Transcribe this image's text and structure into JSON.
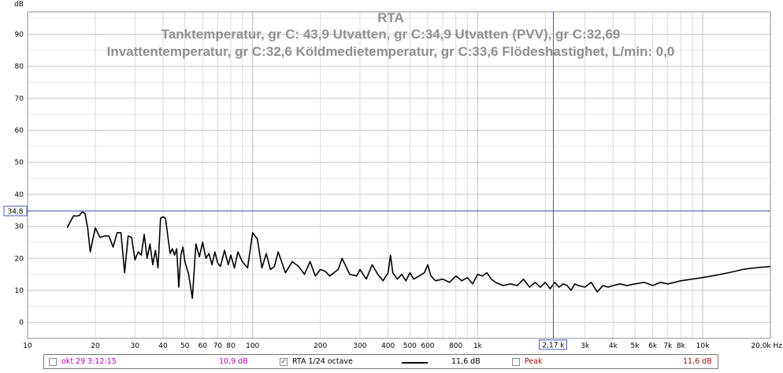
{
  "chart_data": {
    "type": "line",
    "title": "RTA",
    "subtitle_lines": [
      "Tanktemperatur, gr C: 43,9 Utvatten, gr C:34,9 Utvatten (PVV),  gr C:32,69",
      "Invattentemperatur,  gr C:32,6 Köldmedietemperatur, gr C:33,6 Flödeshastighet, L/min: 0,0"
    ],
    "ylabel": "dB",
    "xunit": "Hz",
    "x_scale": "log",
    "xlim": [
      10,
      20000
    ],
    "ylim": [
      -5,
      97
    ],
    "y_ticks": [
      0,
      10,
      20,
      30,
      40,
      50,
      60,
      70,
      80,
      90
    ],
    "x_ticks": [
      {
        "value": 10,
        "label": "10"
      },
      {
        "value": 20,
        "label": "20"
      },
      {
        "value": 30,
        "label": "30"
      },
      {
        "value": 40,
        "label": "40"
      },
      {
        "value": 50,
        "label": "50"
      },
      {
        "value": 60,
        "label": "60"
      },
      {
        "value": 70,
        "label": "70"
      },
      {
        "value": 80,
        "label": "80"
      },
      {
        "value": 100,
        "label": "100"
      },
      {
        "value": 200,
        "label": "200"
      },
      {
        "value": 300,
        "label": "300"
      },
      {
        "value": 400,
        "label": "400"
      },
      {
        "value": 500,
        "label": "500"
      },
      {
        "value": 600,
        "label": "600"
      },
      {
        "value": 800,
        "label": "800"
      },
      {
        "value": 1000,
        "label": "1k"
      },
      {
        "value": 3000,
        "label": "3k"
      },
      {
        "value": 4000,
        "label": "4k"
      },
      {
        "value": 5000,
        "label": "5k"
      },
      {
        "value": 6000,
        "label": "6k"
      },
      {
        "value": 7000,
        "label": "7k"
      },
      {
        "value": 8000,
        "label": "8k"
      },
      {
        "value": 10000,
        "label": "10k"
      },
      {
        "value": 20000,
        "label": "20,0k Hz"
      }
    ],
    "grid": true,
    "cursor": {
      "x": 2170,
      "x_label": "2,17 k",
      "y": 34.8,
      "y_label": "34,8"
    },
    "series": [
      {
        "name": "RTA 1/24 octave",
        "color": "#000000",
        "x": [
          15.0,
          15.5,
          16.0,
          16.5,
          17.0,
          17.5,
          18.0,
          18.5,
          19.0,
          19.5,
          20.0,
          21.0,
          22.0,
          23.0,
          24.0,
          25.0,
          26.0,
          27.0,
          28.0,
          29.0,
          30.0,
          31.0,
          32.0,
          33.0,
          34.0,
          35.0,
          36.0,
          37.0,
          38.0,
          39.0,
          40.0,
          41.0,
          42.0,
          43.0,
          44.0,
          45.0,
          46.0,
          47.0,
          48.0,
          49.0,
          50.0,
          52.0,
          54.0,
          56.0,
          58.0,
          60.0,
          62.0,
          64.0,
          66.0,
          68.0,
          70.0,
          72.0,
          75.0,
          78.0,
          80.0,
          83.0,
          86.0,
          90.0,
          95.0,
          100.0,
          105.0,
          110.0,
          115.0,
          120.0,
          125.0,
          130.0,
          140.0,
          150.0,
          160.0,
          170.0,
          180.0,
          190.0,
          200.0,
          210.0,
          220.0,
          240.0,
          250.0,
          260.0,
          270.0,
          290.0,
          300.0,
          320.0,
          340.0,
          360.0,
          380.0,
          400.0,
          410.0,
          420.0,
          440.0,
          460.0,
          480.0,
          500.0,
          520.0,
          550.0,
          580.0,
          600.0,
          620.0,
          650.0,
          700.0,
          750.0,
          800.0,
          850.0,
          900.0,
          950.0,
          1000.0,
          1050.0,
          1100.0,
          1150.0,
          1200.0,
          1300.0,
          1400.0,
          1500.0,
          1600.0,
          1700.0,
          1800.0,
          1900.0,
          2000.0,
          2100.0,
          2200.0,
          2300.0,
          2400.0,
          2500.0,
          2600.0,
          2700.0,
          2800.0,
          3000.0,
          3200.0,
          3400.0,
          3600.0,
          3800.0,
          4000.0,
          4300.0,
          4600.0,
          5000.0,
          5500.0,
          6000.0,
          6500.0,
          7000.0,
          7500.0,
          8000.0,
          9000.0,
          10000.0,
          11000.0,
          12000.0,
          13000.0,
          14000.0,
          15000.0,
          16000.0,
          17000.0,
          18000.0,
          19000.0,
          20000.0
        ],
        "values": [
          29.5,
          31.5,
          33.3,
          33.2,
          33.4,
          34.5,
          34.0,
          29.5,
          22.0,
          26.0,
          29.5,
          26.5,
          27.0,
          27.0,
          23.5,
          28.0,
          28.0,
          15.5,
          27.0,
          26.5,
          19.5,
          22.0,
          21.0,
          27.5,
          20.0,
          24.5,
          18.0,
          22.5,
          17.0,
          32.5,
          33.0,
          32.5,
          27.0,
          21.5,
          23.0,
          21.0,
          23.0,
          11.0,
          21.0,
          23.5,
          19.0,
          15.0,
          7.5,
          24.5,
          20.5,
          25.0,
          20.0,
          21.5,
          18.0,
          22.0,
          18.5,
          17.5,
          22.5,
          18.0,
          21.0,
          17.0,
          22.0,
          19.0,
          17.0,
          28.0,
          26.0,
          17.0,
          21.5,
          16.5,
          17.5,
          22.0,
          15.5,
          19.0,
          17.5,
          15.0,
          19.0,
          14.5,
          16.5,
          16.0,
          14.5,
          16.5,
          20.0,
          17.5,
          15.0,
          14.5,
          16.5,
          13.5,
          18.0,
          15.0,
          13.0,
          15.5,
          21.0,
          15.5,
          13.5,
          15.0,
          13.0,
          15.5,
          13.5,
          14.5,
          15.5,
          18.0,
          14.5,
          13.0,
          13.5,
          12.5,
          14.5,
          13.0,
          14.0,
          12.0,
          15.0,
          14.5,
          15.5,
          13.5,
          12.5,
          11.5,
          12.0,
          11.5,
          13.5,
          11.0,
          12.5,
          11.0,
          12.5,
          10.5,
          12.5,
          11.0,
          12.0,
          11.5,
          10.0,
          12.0,
          11.5,
          11.0,
          12.5,
          9.5,
          11.5,
          11.0,
          11.5,
          12.0,
          11.5,
          12.0,
          12.5,
          11.5,
          12.5,
          12.0,
          12.5,
          13.0,
          13.5,
          14.0,
          14.5,
          15.0,
          15.5,
          16.0,
          16.5,
          16.8,
          17.0,
          17.2,
          17.3,
          17.5
        ]
      }
    ],
    "legend": [
      {
        "checked": false,
        "label": "okt 29 3:12:15",
        "value": "10,9 dB",
        "color": "#c000c0"
      },
      {
        "checked": true,
        "label": "RTA 1/24 octave",
        "value": "11,6 dB",
        "color": "#000000"
      },
      {
        "checked": false,
        "label": "Peak",
        "value": "11,6 dB",
        "color": "#a01010"
      }
    ]
  }
}
